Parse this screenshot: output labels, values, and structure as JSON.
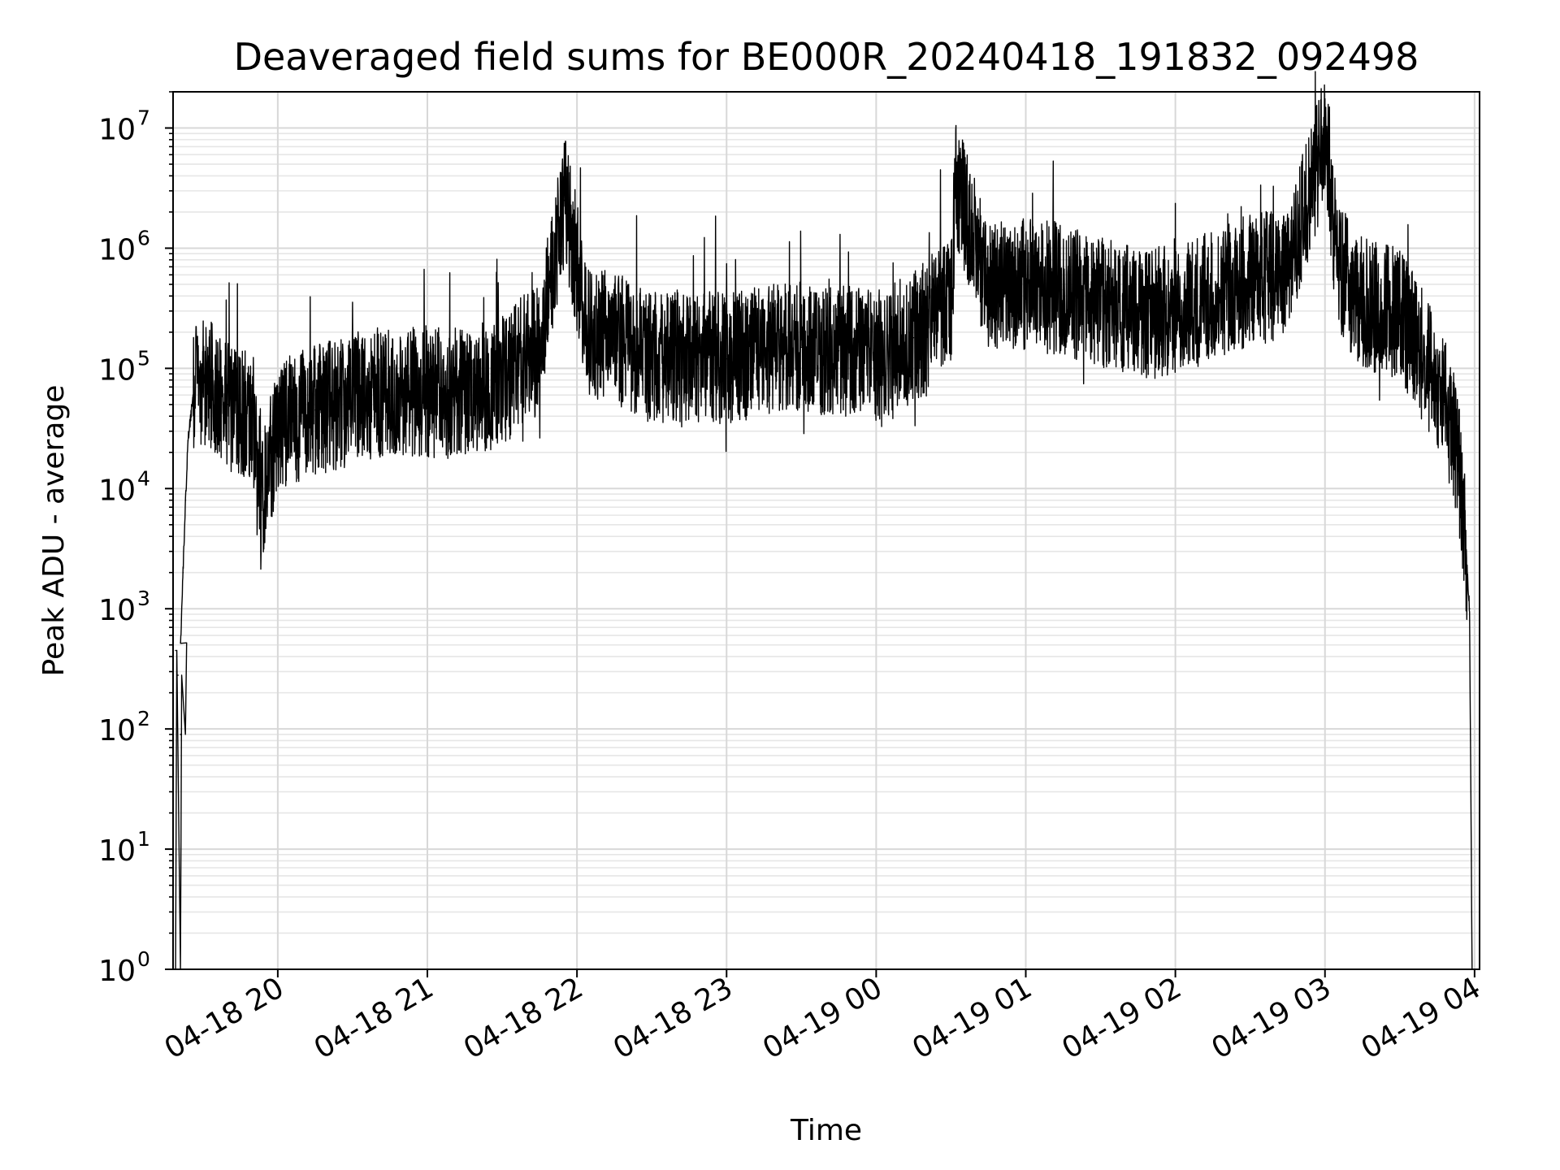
{
  "chart_data": {
    "type": "line",
    "title": "Deaveraged field sums for BE000R_20240418_191832_092498",
    "xlabel": "Time",
    "ylabel": "Peak ADU - average",
    "xscale": "time",
    "yscale": "log",
    "xlim": [
      "2024-04-18 19:18",
      "2024-04-19 04:02"
    ],
    "ylim": [
      1,
      20000000
    ],
    "grid": true,
    "line_color": "#000000",
    "x_ticks": [
      "04-18 20",
      "04-18 21",
      "04-18 22",
      "04-18 23",
      "04-19 00",
      "04-19 01",
      "04-19 02",
      "04-19 03",
      "04-19 04"
    ],
    "y_ticks": [
      {
        "base": "10",
        "exp": "0"
      },
      {
        "base": "10",
        "exp": "1"
      },
      {
        "base": "10",
        "exp": "2"
      },
      {
        "base": "10",
        "exp": "3"
      },
      {
        "base": "10",
        "exp": "4"
      },
      {
        "base": "10",
        "exp": "5"
      },
      {
        "base": "10",
        "exp": "6"
      },
      {
        "base": "10",
        "exp": "7"
      }
    ],
    "series": [
      {
        "points": [
          [
            "2024-04-18 19:19",
            1
          ],
          [
            "2024-04-18 19:19",
            450
          ],
          [
            "2024-04-18 19:20",
            1
          ],
          [
            "2024-04-18 19:20",
            280
          ],
          [
            "2024-04-18 19:21",
            90
          ],
          [
            "2024-04-18 19:21",
            520
          ],
          [
            "2024-04-18 19:22",
            2000
          ],
          [
            "2024-04-18 19:23",
            8000
          ],
          [
            "2024-04-18 19:24",
            25000
          ],
          [
            "2024-04-18 19:26",
            60000
          ],
          [
            "2024-04-18 19:30",
            80000
          ],
          [
            "2024-04-18 19:40",
            50000
          ],
          [
            "2024-04-18 19:50",
            40000
          ],
          [
            "2024-04-18 19:53",
            6000
          ],
          [
            "2024-04-18 20:00",
            35000
          ],
          [
            "2024-04-18 20:15",
            45000
          ],
          [
            "2024-04-18 20:30",
            55000
          ],
          [
            "2024-04-18 20:45",
            60000
          ],
          [
            "2024-04-18 21:00",
            65000
          ],
          [
            "2024-04-18 21:15",
            60000
          ],
          [
            "2024-04-18 21:30",
            80000
          ],
          [
            "2024-04-18 21:45",
            150000
          ],
          [
            "2024-04-18 21:55",
            2500000
          ],
          [
            "2024-04-18 22:05",
            200000
          ],
          [
            "2024-04-18 22:15",
            180000
          ],
          [
            "2024-04-18 22:30",
            120000
          ],
          [
            "2024-04-18 22:45",
            130000
          ],
          [
            "2024-04-18 23:00",
            120000
          ],
          [
            "2024-04-18 23:15",
            140000
          ],
          [
            "2024-04-18 23:30",
            150000
          ],
          [
            "2024-04-18 23:45",
            140000
          ],
          [
            "2024-04-19 00:00",
            130000
          ],
          [
            "2024-04-19 00:15",
            180000
          ],
          [
            "2024-04-19 00:30",
            350000
          ],
          [
            "2024-04-19 00:32",
            3500000
          ],
          [
            "2024-04-19 00:45",
            450000
          ],
          [
            "2024-04-19 01:00",
            500000
          ],
          [
            "2024-04-19 01:15",
            450000
          ],
          [
            "2024-04-19 01:30",
            350000
          ],
          [
            "2024-04-19 01:45",
            280000
          ],
          [
            "2024-04-19 02:00",
            300000
          ],
          [
            "2024-04-19 02:15",
            400000
          ],
          [
            "2024-04-19 02:30",
            550000
          ],
          [
            "2024-04-19 02:45",
            600000
          ],
          [
            "2024-04-19 03:00",
            9000000
          ],
          [
            "2024-04-19 03:05",
            700000
          ],
          [
            "2024-04-19 03:15",
            350000
          ],
          [
            "2024-04-19 03:30",
            280000
          ],
          [
            "2024-04-19 03:40",
            120000
          ],
          [
            "2024-04-19 03:48",
            50000
          ],
          [
            "2024-04-19 03:53",
            20000
          ],
          [
            "2024-04-19 03:56",
            5000
          ],
          [
            "2024-04-19 03:58",
            1000
          ],
          [
            "2024-04-19 03:59",
            1
          ]
        ]
      }
    ]
  }
}
